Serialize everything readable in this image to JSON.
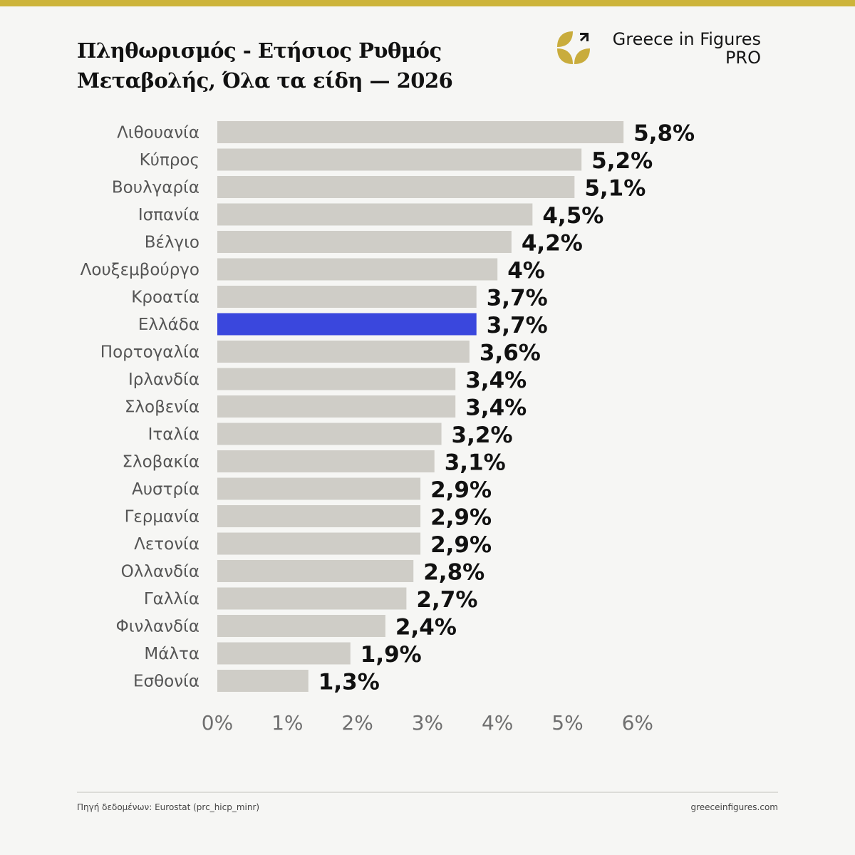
{
  "header": {
    "title_line1": "Πληθωρισμός - Ετήσιος Ρυθμός",
    "title_line2": "Μεταβολής, Όλα τα είδη — 2026"
  },
  "logo": {
    "brand": "Greece in Figures",
    "tier": "PRO"
  },
  "colors": {
    "stripe": "#cdb43a",
    "bar": "#cfcdc7",
    "highlight": "#3a47dd",
    "logo_gold": "#c9ac3c"
  },
  "chart_data": {
    "type": "bar",
    "orientation": "horizontal",
    "categories": [
      "Λιθουανία",
      "Κύπρος",
      "Βουλγαρία",
      "Ισπανία",
      "Βέλγιο",
      "Λουξεμβούργο",
      "Κροατία",
      "Ελλάδα",
      "Πορτογαλία",
      "Ιρλανδία",
      "Σλοβενία",
      "Ιταλία",
      "Σλοβακία",
      "Αυστρία",
      "Γερμανία",
      "Λετονία",
      "Ολλανδία",
      "Γαλλία",
      "Φινλανδία",
      "Μάλτα",
      "Εσθονία"
    ],
    "values": [
      5.8,
      5.2,
      5.1,
      4.5,
      4.2,
      4.0,
      3.7,
      3.7,
      3.6,
      3.4,
      3.4,
      3.2,
      3.1,
      2.9,
      2.9,
      2.9,
      2.8,
      2.7,
      2.4,
      1.9,
      1.3
    ],
    "value_labels": [
      "5,8%",
      "5,2%",
      "5,1%",
      "4,5%",
      "4,2%",
      "4%",
      "3,7%",
      "3,7%",
      "3,6%",
      "3,4%",
      "3,4%",
      "3,2%",
      "3,1%",
      "2,9%",
      "2,9%",
      "2,9%",
      "2,8%",
      "2,7%",
      "2,4%",
      "1,9%",
      "1,3%"
    ],
    "highlight": "Ελλάδα",
    "xlim": [
      0,
      6
    ],
    "x_ticks": [
      0,
      1,
      2,
      3,
      4,
      5,
      6
    ],
    "x_tick_labels": [
      "0%",
      "1%",
      "2%",
      "3%",
      "4%",
      "5%",
      "6%"
    ],
    "grid": false,
    "legend": "none"
  },
  "footer": {
    "source": "Πηγή δεδομένων: Eurostat (prc_hicp_minr)",
    "site": "greeceinfigures.com"
  }
}
